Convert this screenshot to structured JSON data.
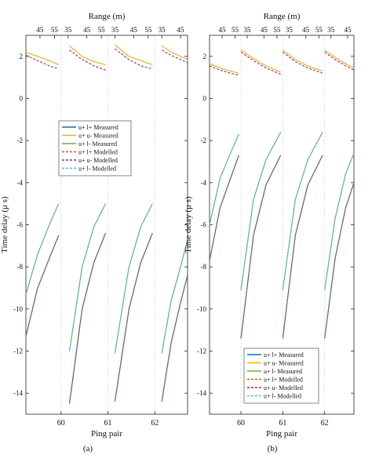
{
  "chart_data": [
    {
      "panel_label": "(a)",
      "type": "line",
      "xlabel": "Ping pair",
      "ylabel": "Time delay (μ s)",
      "top_axis_label": "Range (m)",
      "xlim": [
        59.25,
        62.7
      ],
      "ylim": [
        -15,
        3
      ],
      "x_ticks": [
        60,
        61,
        62
      ],
      "y_ticks": [
        2,
        0,
        -2,
        -4,
        -6,
        -8,
        -10,
        -12,
        -14
      ],
      "top_ticks": [
        {
          "x": 59.55,
          "label": "45"
        },
        {
          "x": 59.86,
          "label": "55"
        },
        {
          "x": 60.15,
          "label": "35"
        },
        {
          "x": 60.55,
          "label": "45"
        },
        {
          "x": 60.86,
          "label": "55"
        },
        {
          "x": 61.15,
          "label": "35"
        },
        {
          "x": 61.55,
          "label": "45"
        },
        {
          "x": 61.86,
          "label": "55"
        },
        {
          "x": 62.15,
          "label": "35"
        },
        {
          "x": 62.55,
          "label": "45"
        }
      ],
      "legend": {
        "placement": "upper-center",
        "entries": [
          {
            "label": "u+ l+ Measured",
            "color": "#0072bd",
            "dash": "solid"
          },
          {
            "label": "u+ u- Measured",
            "color": "#edb120",
            "dash": "solid"
          },
          {
            "label": "u+ l- Measured",
            "color": "#77ac30",
            "dash": "solid"
          },
          {
            "label": "u+ l+ Modelled",
            "color": "#d95319",
            "dash": "dashed"
          },
          {
            "label": "u+ u- Modelled",
            "color": "#7e2f8e",
            "dash": "dashed"
          },
          {
            "label": "u+ l- Modelled",
            "color": "#4dbeee",
            "dash": "dashed"
          }
        ]
      },
      "segments": [
        {
          "x": [
            59.25,
            59.5,
            59.75,
            59.95
          ],
          "uu_meas": [
            2.2,
            2.0,
            1.8,
            1.6
          ],
          "uu_mod": [
            2.05,
            1.8,
            1.55,
            1.4
          ],
          "ul_minus": [
            -9.3,
            -7.4,
            -6.0,
            -5.0
          ],
          "ul_plus": [
            -11.3,
            -9.0,
            -7.6,
            -6.5
          ]
        },
        {
          "x": [
            60.18,
            60.45,
            60.7,
            60.95
          ],
          "uu_meas": [
            2.5,
            2.0,
            1.75,
            1.6
          ],
          "uu_mod": [
            2.3,
            1.85,
            1.55,
            1.35
          ],
          "ul_minus": [
            -12.0,
            -8.0,
            -6.1,
            -5.0
          ],
          "ul_plus": [
            -14.5,
            -10.0,
            -7.8,
            -6.4
          ]
        },
        {
          "x": [
            61.15,
            61.45,
            61.7,
            61.95
          ],
          "uu_meas": [
            2.55,
            2.0,
            1.8,
            1.6
          ],
          "uu_mod": [
            2.35,
            1.85,
            1.55,
            1.4
          ],
          "ul_minus": [
            -12.1,
            -8.0,
            -6.1,
            -5.0
          ],
          "ul_plus": [
            -14.4,
            -10.0,
            -7.8,
            -6.4
          ]
        },
        {
          "x": [
            62.15,
            62.35,
            62.55,
            62.7
          ],
          "uu_meas": [
            2.5,
            2.2,
            2.0,
            1.85
          ],
          "uu_mod": [
            2.3,
            2.05,
            1.85,
            1.7
          ],
          "ul_minus": [
            -12.1,
            -9.6,
            -8.0,
            -6.7
          ],
          "ul_plus": [
            -14.4,
            -11.6,
            -9.7,
            -8.4
          ]
        }
      ]
    },
    {
      "panel_label": "(b)",
      "type": "line",
      "xlabel": "Ping pair",
      "ylabel": "Time delay (μ s)",
      "top_axis_label": "Range (m)",
      "xlim": [
        59.25,
        62.7
      ],
      "ylim": [
        -15,
        3
      ],
      "x_ticks": [
        60,
        61,
        62
      ],
      "y_ticks": [
        2,
        0,
        -2,
        -4,
        -6,
        -8,
        -10,
        -12,
        -14
      ],
      "top_ticks": [
        {
          "x": 59.55,
          "label": "45"
        },
        {
          "x": 59.86,
          "label": "55"
        },
        {
          "x": 60.15,
          "label": "35"
        },
        {
          "x": 60.55,
          "label": "45"
        },
        {
          "x": 60.86,
          "label": "55"
        },
        {
          "x": 61.15,
          "label": "35"
        },
        {
          "x": 61.55,
          "label": "45"
        },
        {
          "x": 61.86,
          "label": "55"
        },
        {
          "x": 62.15,
          "label": "35"
        },
        {
          "x": 62.55,
          "label": "45"
        }
      ],
      "legend": {
        "placement": "lower-right",
        "entries": [
          {
            "label": "u+ l+ Measured",
            "color": "#0072bd",
            "dash": "solid"
          },
          {
            "label": "u+ u- Measured",
            "color": "#edb120",
            "dash": "solid"
          },
          {
            "label": "u+ l- Measured",
            "color": "#77ac30",
            "dash": "solid"
          },
          {
            "label": "u+ l+ Modelled",
            "color": "#d95319",
            "dash": "dashed"
          },
          {
            "label": "u+ u- Modelled",
            "color": "#7e2f8e",
            "dash": "dashed"
          },
          {
            "label": "u+ l- Modelled",
            "color": "#4dbeee",
            "dash": "dashed"
          }
        ]
      },
      "segments": [
        {
          "x": [
            59.25,
            59.5,
            59.75,
            59.95
          ],
          "uu_meas": [
            1.65,
            1.45,
            1.3,
            1.2
          ],
          "uu_mod": [
            1.55,
            1.35,
            1.2,
            1.1
          ],
          "ul_minus": [
            -6.0,
            -3.8,
            -2.6,
            -1.7
          ],
          "ul_plus": [
            -7.7,
            -5.2,
            -3.8,
            -2.7
          ]
        },
        {
          "x": [
            60.0,
            60.3,
            60.6,
            60.95
          ],
          "uu_meas": [
            2.3,
            1.9,
            1.55,
            1.25
          ],
          "uu_mod": [
            2.2,
            1.8,
            1.45,
            1.15
          ],
          "ul_minus": [
            -9.1,
            -4.8,
            -2.9,
            -1.6
          ],
          "ul_plus": [
            -11.4,
            -6.5,
            -4.1,
            -2.7
          ]
        },
        {
          "x": [
            61.0,
            61.3,
            61.6,
            61.95
          ],
          "uu_meas": [
            2.3,
            1.85,
            1.55,
            1.3
          ],
          "uu_mod": [
            2.2,
            1.75,
            1.45,
            1.2
          ],
          "ul_minus": [
            -9.1,
            -4.8,
            -2.9,
            -1.6
          ],
          "ul_plus": [
            -11.4,
            -6.5,
            -4.1,
            -2.7
          ]
        },
        {
          "x": [
            62.0,
            62.25,
            62.5,
            62.7
          ],
          "uu_meas": [
            2.3,
            1.95,
            1.65,
            1.45
          ],
          "uu_mod": [
            2.2,
            1.85,
            1.55,
            1.35
          ],
          "ul_minus": [
            -9.1,
            -5.7,
            -3.6,
            -2.6
          ],
          "ul_plus": [
            -11.4,
            -7.6,
            -5.2,
            -4.0
          ]
        }
      ]
    }
  ]
}
